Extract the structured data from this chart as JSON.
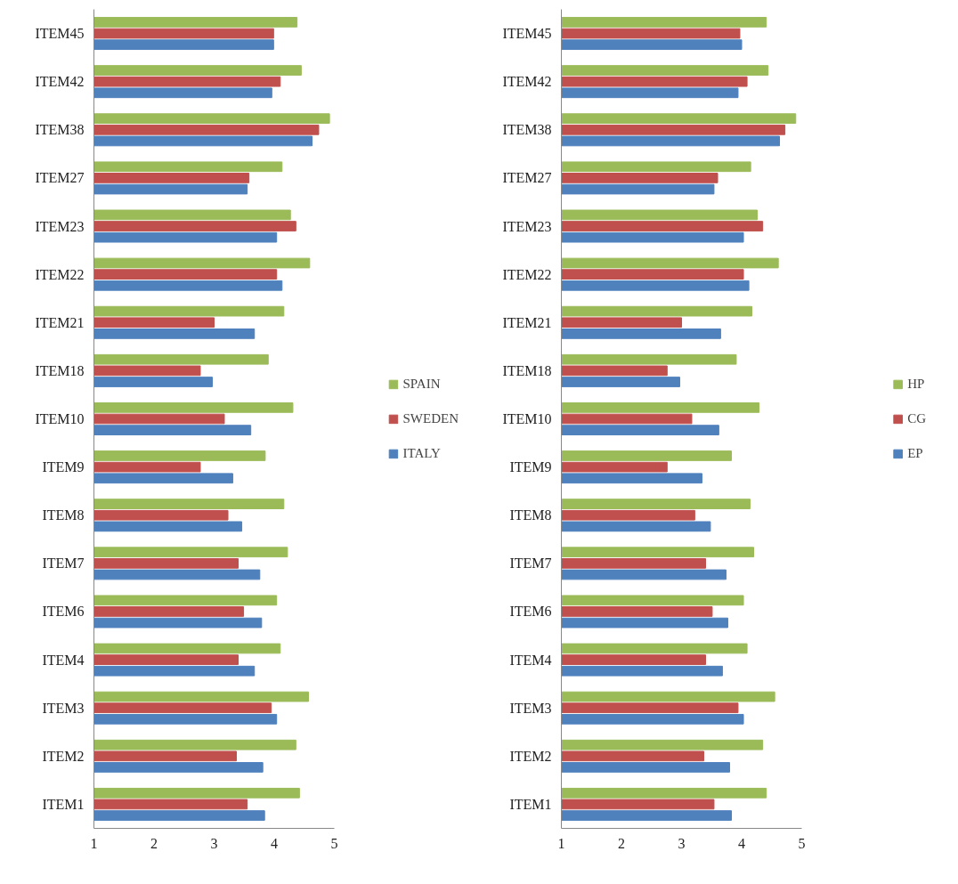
{
  "chart_data": [
    {
      "type": "bar",
      "orientation": "horizontal",
      "categories": [
        "ITEM45",
        "ITEM42",
        "ITEM38",
        "ITEM27",
        "ITEM23",
        "ITEM22",
        "ITEM21",
        "ITEM18",
        "ITEM10",
        "ITEM9",
        "ITEM8",
        "ITEM7",
        "ITEM6",
        "ITEM4",
        "ITEM3",
        "ITEM2",
        "ITEM1"
      ],
      "series": [
        {
          "name": "SPAIN",
          "color": "#9bbb59",
          "values": [
            4.38,
            4.45,
            4.92,
            4.13,
            4.27,
            4.59,
            4.16,
            3.9,
            4.31,
            3.85,
            4.16,
            4.22,
            4.04,
            4.1,
            4.57,
            4.36,
            4.42
          ]
        },
        {
          "name": "SWEDEN",
          "color": "#c0504d",
          "values": [
            3.99,
            4.1,
            4.74,
            3.58,
            4.36,
            4.04,
            3.0,
            2.77,
            3.17,
            2.77,
            3.23,
            3.4,
            3.49,
            3.4,
            3.95,
            3.37,
            3.55
          ]
        },
        {
          "name": "ITALY",
          "color": "#4f81bd",
          "values": [
            3.99,
            3.96,
            4.63,
            3.55,
            4.04,
            4.13,
            3.67,
            2.97,
            3.61,
            3.31,
            3.46,
            3.76,
            3.79,
            3.67,
            4.04,
            3.81,
            3.84
          ]
        }
      ],
      "xlim": [
        1,
        5
      ],
      "xticks": [
        1,
        2,
        3,
        4,
        5
      ],
      "grid": false,
      "legend": "right"
    },
    {
      "type": "bar",
      "orientation": "horizontal",
      "categories": [
        "ITEM45",
        "ITEM42",
        "ITEM38",
        "ITEM27",
        "ITEM23",
        "ITEM22",
        "ITEM21",
        "ITEM18",
        "ITEM10",
        "ITEM9",
        "ITEM8",
        "ITEM7",
        "ITEM6",
        "ITEM4",
        "ITEM3",
        "ITEM2",
        "ITEM1"
      ],
      "series": [
        {
          "name": "HP",
          "color": "#9bbb59",
          "values": [
            4.41,
            4.44,
            4.9,
            4.15,
            4.26,
            4.61,
            4.17,
            3.91,
            4.29,
            3.83,
            4.14,
            4.2,
            4.03,
            4.09,
            4.55,
            4.35,
            4.41
          ]
        },
        {
          "name": "CG",
          "color": "#c0504d",
          "values": [
            3.97,
            4.09,
            4.72,
            3.6,
            4.35,
            4.03,
            3.0,
            2.76,
            3.17,
            2.76,
            3.22,
            3.4,
            3.51,
            3.4,
            3.94,
            3.37,
            3.54
          ]
        },
        {
          "name": "EP",
          "color": "#4f81bd",
          "values": [
            4.0,
            3.94,
            4.63,
            3.54,
            4.03,
            4.12,
            3.65,
            2.97,
            3.62,
            3.34,
            3.48,
            3.74,
            3.77,
            3.68,
            4.03,
            3.8,
            3.83
          ]
        }
      ],
      "xlim": [
        1,
        5
      ],
      "xticks": [
        1,
        2,
        3,
        4,
        5
      ],
      "grid": false,
      "legend": "right"
    }
  ]
}
